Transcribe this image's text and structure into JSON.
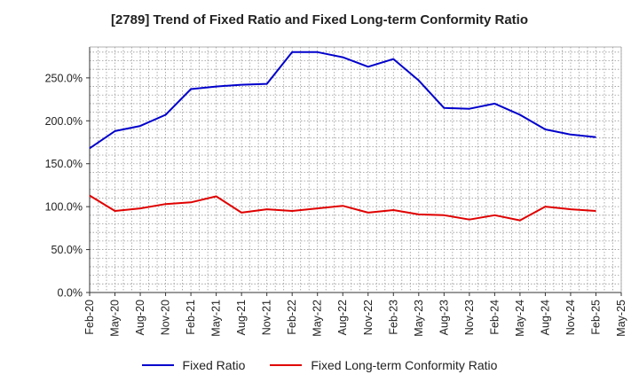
{
  "chart_data": {
    "type": "line",
    "title": "[2789]  Trend of Fixed Ratio and Fixed Long-term Conformity Ratio",
    "xlabel": "",
    "ylabel": "",
    "x": [
      "Feb-20",
      "May-20",
      "Aug-20",
      "Nov-20",
      "Feb-21",
      "May-21",
      "Aug-21",
      "Nov-21",
      "Feb-22",
      "May-22",
      "Aug-22",
      "Nov-22",
      "Feb-23",
      "May-23",
      "Aug-23",
      "Nov-23",
      "Feb-24",
      "May-24",
      "Aug-24",
      "Nov-24",
      "Feb-25",
      "May-25"
    ],
    "ylim": [
      0,
      286
    ],
    "yticks": [
      0,
      50,
      100,
      150,
      200,
      250
    ],
    "ytick_labels": [
      "0.0%",
      "50.0%",
      "100.0%",
      "150.0%",
      "200.0%",
      "250.0%"
    ],
    "series": [
      {
        "name": "Fixed Ratio",
        "color": "#0000cc",
        "values": [
          168,
          188,
          194,
          207,
          237,
          240,
          242,
          243,
          280,
          280,
          274,
          263,
          272,
          247,
          215,
          214,
          220,
          207,
          190,
          184,
          181,
          null
        ]
      },
      {
        "name": "Fixed Long-term Conformity Ratio",
        "color": "#e00000",
        "values": [
          113,
          95,
          98,
          103,
          105,
          112,
          93,
          97,
          95,
          98,
          101,
          93,
          96,
          91,
          90,
          85,
          90,
          84,
          100,
          97,
          95,
          null
        ]
      }
    ],
    "grid": true,
    "legend_position": "bottom"
  }
}
